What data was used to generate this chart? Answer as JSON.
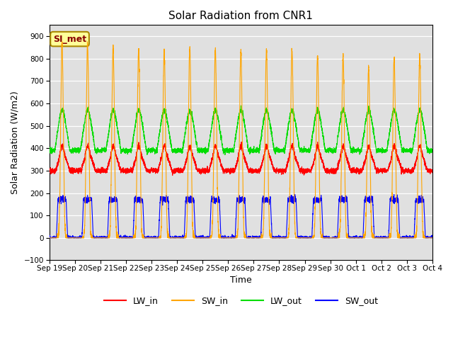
{
  "title": "Solar Radiation from CNR1",
  "xlabel": "Time",
  "ylabel": "Solar Radiation (W/m2)",
  "ylim": [
    -100,
    950
  ],
  "yticks": [
    -100,
    0,
    100,
    200,
    300,
    400,
    500,
    600,
    700,
    800,
    900
  ],
  "xlim": [
    0,
    15
  ],
  "xtick_labels": [
    "Sep 19",
    "Sep 20",
    "Sep 21",
    "Sep 22",
    "Sep 23",
    "Sep 24",
    "Sep 25",
    "Sep 26",
    "Sep 27",
    "Sep 28",
    "Sep 29",
    "Sep 30",
    "Oct 1",
    "Oct 2",
    "Oct 3",
    "Oct 4"
  ],
  "xtick_positions": [
    0,
    1,
    2,
    3,
    4,
    5,
    6,
    7,
    8,
    9,
    10,
    11,
    12,
    13,
    14,
    15
  ],
  "colors": {
    "LW_in": "#ff0000",
    "SW_in": "#ffa500",
    "LW_out": "#00dd00",
    "SW_out": "#0000ff"
  },
  "bg_color": "#e8e8e8",
  "plot_bg_color": "#d8d8d8",
  "annotation_text": "SI_met",
  "annotation_bg": "#ffff99",
  "annotation_border": "#aa8800",
  "annotation_text_color": "#880000",
  "n_days": 15,
  "pts_per_day": 288,
  "SW_in_peaks": [
    870,
    860,
    850,
    840,
    838,
    845,
    840,
    835,
    840,
    840,
    815,
    810,
    760,
    800,
    810
  ],
  "SW_out_peak": 170,
  "LW_in_base": 300,
  "LW_out_base": 390,
  "line_width": 0.8,
  "legend_fontsize": 9,
  "tick_fontsize": 7.5,
  "title_fontsize": 11,
  "label_fontsize": 9
}
